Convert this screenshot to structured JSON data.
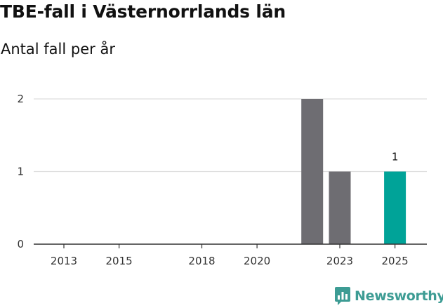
{
  "title": "TBE-fall i Västernorrlands län",
  "subtitle": "Antal fall per år",
  "brand": "Newsworthy",
  "colors": {
    "bar": "#6e6d72",
    "highlight": "#00a398",
    "grid": "#dddddd",
    "axis": "#333333",
    "brand": "#3d9c94"
  },
  "chart_data": {
    "type": "bar",
    "title": "TBE-fall i Västernorrlands län",
    "subtitle": "Antal fall per år",
    "xlabel": "",
    "ylabel": "",
    "categories": [
      "2013",
      "2014",
      "2015",
      "2016",
      "2017",
      "2018",
      "2019",
      "2020",
      "2021",
      "2022",
      "2023",
      "2024",
      "2025"
    ],
    "values": [
      0,
      0,
      0,
      0,
      0,
      0,
      0,
      0,
      0,
      2,
      1,
      0,
      1
    ],
    "highlight_category": "2025",
    "data_labels": [
      {
        "category": "2025",
        "text": "1"
      }
    ],
    "x_tick_labels": [
      "2013",
      "2015",
      "2018",
      "2020",
      "2023",
      "2025"
    ],
    "y_ticks": [
      0,
      1,
      2
    ],
    "ylim": [
      0,
      2
    ],
    "grid": true,
    "legend": "none"
  }
}
